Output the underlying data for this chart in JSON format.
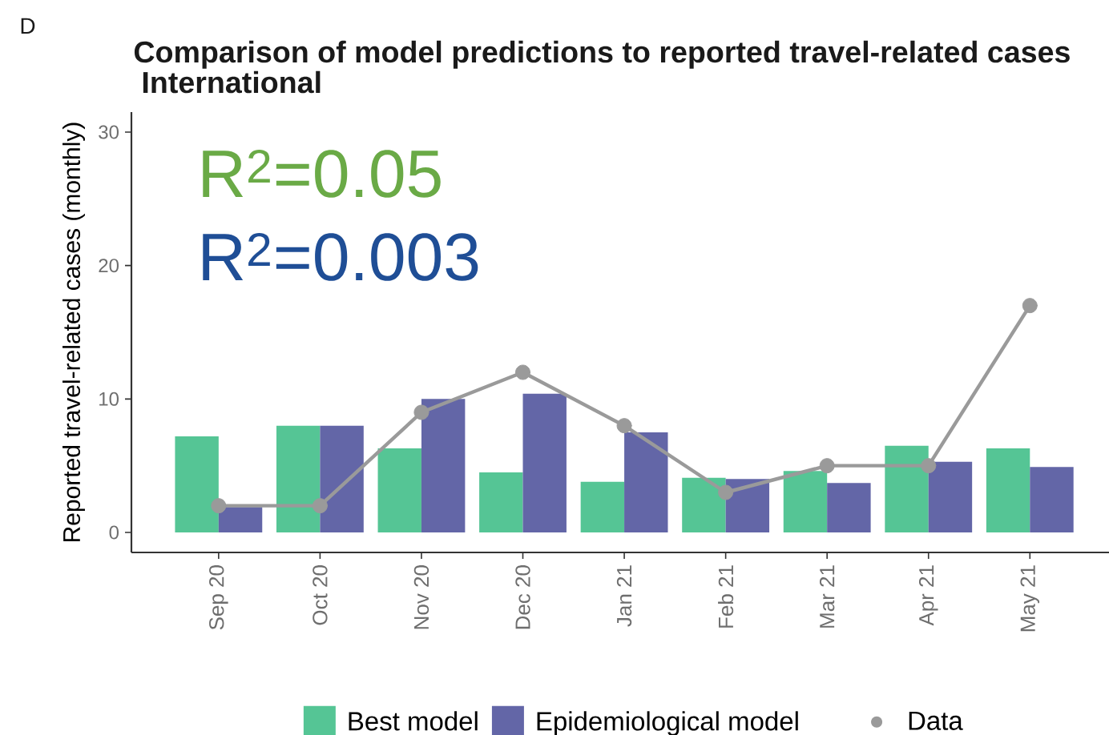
{
  "chart_data": {
    "type": "bar",
    "title": "Comparison of model predictions to reported travel-related cases",
    "subtitle": "International",
    "ylabel": "Reported travel-related cases (monthly)",
    "annotations": [
      "D",
      "R$^{2}$=0.05",
      "R$^{2}$=0.003"
    ],
    "categories": [
      "Sep 20",
      "Oct 20",
      "Nov 20",
      "Dec 20",
      "Jan 21",
      "Feb 21",
      "Mar 21",
      "Apr 21",
      "May 21"
    ],
    "series": [
      {
        "name": "Best model",
        "color": "#55c595",
        "values": [
          7.2,
          8.0,
          6.3,
          4.5,
          3.8,
          4.1,
          4.6,
          6.5,
          6.3
        ]
      },
      {
        "name": "Epidemiological model",
        "color": "#6366a7",
        "values": [
          1.9,
          8.0,
          10.0,
          10.4,
          7.5,
          4.0,
          3.7,
          5.3,
          4.9
        ]
      },
      {
        "name": "Data",
        "type": "line",
        "color": "#9a9a9a",
        "marker": "circle",
        "values": [
          2,
          2,
          9,
          12,
          8,
          3,
          5,
          5,
          17
        ]
      }
    ],
    "ylim": [
      -1.5,
      31.5
    ],
    "yticks": [
      0,
      10,
      20,
      30
    ],
    "legend": "bottom"
  }
}
